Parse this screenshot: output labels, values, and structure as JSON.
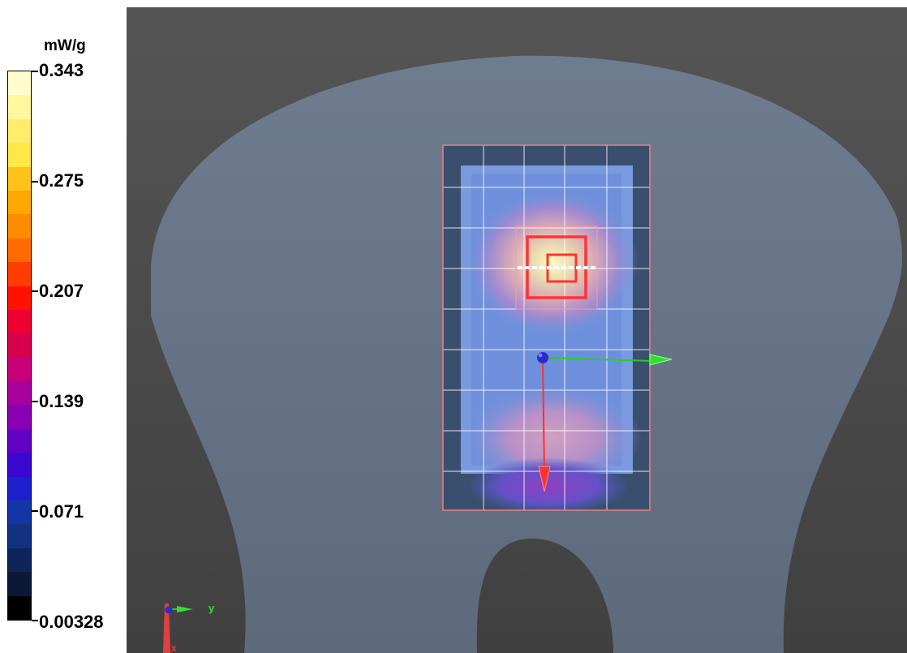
{
  "legend": {
    "unit": "mW/g",
    "ticks": [
      "0.343",
      "0.275",
      "0.207",
      "0.139",
      "0.071",
      "0.00328"
    ],
    "colors": [
      "#fffccc",
      "#fff6a0",
      "#ffec6a",
      "#fde845",
      "#ffc21a",
      "#ffa800",
      "#ff8c00",
      "#ff6a00",
      "#ff3d00",
      "#ff1200",
      "#ee0030",
      "#d8004d",
      "#c8007a",
      "#a8009c",
      "#8800b4",
      "#6200c4",
      "#3a08d0",
      "#1d20cc",
      "#1435a8",
      "#123180",
      "#0e255c",
      "#0b1836",
      "#000000"
    ]
  },
  "colors": {
    "background": "#484848",
    "phantom": "#6d7a8c",
    "grid": "#ffffff",
    "scan_border": "#f08080",
    "peak": "#ff3333",
    "axis_x": "#ff3030",
    "axis_y": "#25d025",
    "axis_z": "#2a2ad0"
  },
  "axes_gizmo": {
    "y_label": "y",
    "x_label": "x"
  }
}
